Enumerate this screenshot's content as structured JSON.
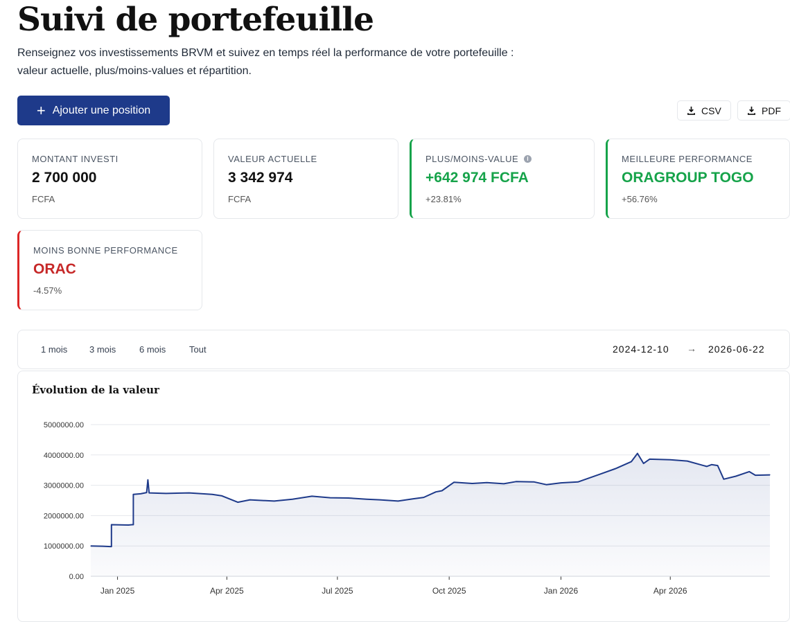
{
  "header": {
    "title": "Suivi de portefeuille",
    "subtitle": "Renseignez vos investissements BRVM et suivez en temps réel la performance de votre portefeuille : valeur actuelle, plus/moins-values et répartition."
  },
  "actions": {
    "add_label": "Ajouter une position",
    "csv_label": "CSV",
    "pdf_label": "PDF"
  },
  "cards": {
    "invested": {
      "label": "MONTANT INVESTI",
      "value": "2 700 000",
      "sub": "FCFA"
    },
    "current": {
      "label": "VALEUR ACTUELLE",
      "value": "3 342 974",
      "sub": "FCFA"
    },
    "pnl": {
      "label": "PLUS/MOINS-VALUE",
      "value": "+642 974 FCFA",
      "sub": "+23.81%"
    },
    "best": {
      "label": "MEILLEURE PERFORMANCE",
      "value": "ORAGROUP TOGO",
      "sub": "+56.76%"
    },
    "worst": {
      "label": "MOINS BONNE PERFORMANCE",
      "value": "ORAC",
      "sub": "-4.57%"
    }
  },
  "range": {
    "buttons": [
      "1 mois",
      "3 mois",
      "6 mois",
      "Tout"
    ],
    "start": "2024-12-10",
    "end": "2026-06-22"
  },
  "colors": {
    "accent": "#1e3a8a",
    "positive": "#16a34a",
    "negative": "#c62828"
  },
  "chart_data": {
    "type": "area",
    "title": "Évolution de la valeur",
    "xlabel": "",
    "ylabel": "",
    "ylim": [
      0,
      5000000
    ],
    "y_ticks": [
      "0.00",
      "1000000.00",
      "2000000.00",
      "3000000.00",
      "4000000.00",
      "5000000.00"
    ],
    "x_ticks": [
      "Jan 2025",
      "Apr 2025",
      "Jul 2025",
      "Oct 2025",
      "Jan 2026",
      "Apr 2026"
    ],
    "x_tick_dates": [
      "2025-01-01",
      "2025-04-01",
      "2025-07-01",
      "2025-10-01",
      "2026-01-01",
      "2026-04-01"
    ],
    "grid": true,
    "series": [
      {
        "x": [
          "2024-12-10",
          "2024-12-20",
          "2024-12-26",
          "2024-12-27",
          "2025-01-10",
          "2025-01-13",
          "2025-01-14",
          "2025-01-20",
          "2025-01-25",
          "2025-01-26",
          "2025-01-27",
          "2025-02-10",
          "2025-03-01",
          "2025-03-20",
          "2025-03-28",
          "2025-04-10",
          "2025-04-20",
          "2025-05-10",
          "2025-05-25",
          "2025-06-10",
          "2025-06-25",
          "2025-07-10",
          "2025-07-25",
          "2025-08-05",
          "2025-08-20",
          "2025-09-01",
          "2025-09-10",
          "2025-09-20",
          "2025-09-25",
          "2025-10-05",
          "2025-10-20",
          "2025-11-01",
          "2025-11-15",
          "2025-11-25",
          "2025-12-10",
          "2025-12-20",
          "2026-01-01",
          "2026-01-15",
          "2026-02-01",
          "2026-02-15",
          "2026-02-28",
          "2026-03-05",
          "2026-03-10",
          "2026-03-15",
          "2026-04-01",
          "2026-04-15",
          "2026-05-01",
          "2026-05-05",
          "2026-05-10",
          "2026-05-15",
          "2026-05-25",
          "2026-06-05",
          "2026-06-10",
          "2026-06-22"
        ],
        "values": [
          1000000,
          990000,
          980000,
          1700000,
          1690000,
          1700000,
          2700000,
          2720000,
          2760000,
          3180000,
          2750000,
          2730000,
          2750000,
          2700000,
          2650000,
          2440000,
          2520000,
          2480000,
          2540000,
          2640000,
          2590000,
          2580000,
          2540000,
          2520000,
          2480000,
          2550000,
          2600000,
          2780000,
          2820000,
          3100000,
          3060000,
          3090000,
          3050000,
          3120000,
          3110000,
          3020000,
          3080000,
          3110000,
          3350000,
          3550000,
          3780000,
          4050000,
          3720000,
          3860000,
          3840000,
          3800000,
          3620000,
          3680000,
          3650000,
          3200000,
          3300000,
          3450000,
          3330000,
          3342974
        ]
      }
    ]
  }
}
